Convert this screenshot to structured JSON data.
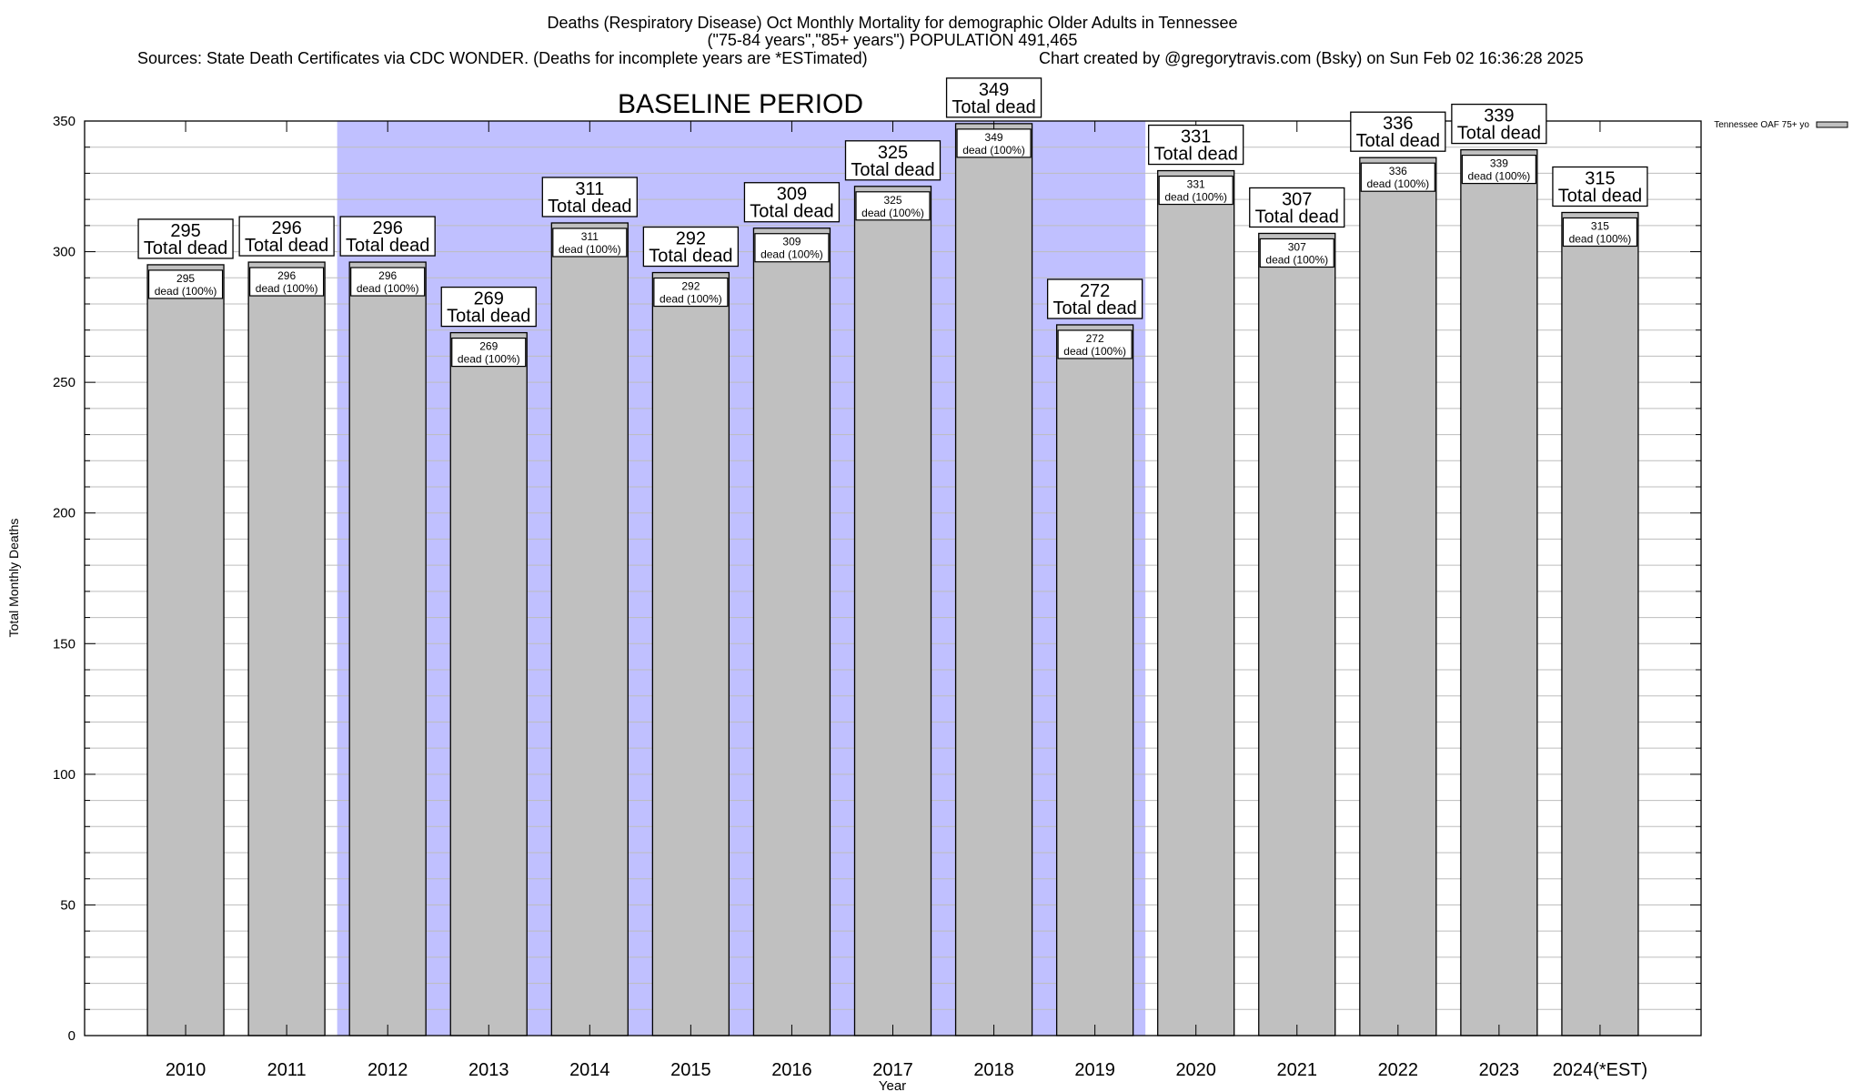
{
  "chart_data": {
    "type": "bar",
    "title_lines": [
      "Deaths (Respiratory Disease) Oct Monthly Mortality for demographic Older Adults in Tennessee",
      "(\"75-84 years\",\"85+ years\") POPULATION 491,465"
    ],
    "sources": "Sources: State Death Certificates via CDC WONDER. (Deaths for incomplete years are *ESTimated)",
    "credit": "Chart created by @gregorytravis.com (Bsky) on Sun Feb 02 16:36:28 2025",
    "xlabel": "Year",
    "ylabel": "Total Monthly Deaths",
    "ylim": [
      0,
      350
    ],
    "yticks": [
      0,
      50,
      100,
      150,
      200,
      250,
      300,
      350
    ],
    "grid": true,
    "minor_grid_step": 10,
    "categories": [
      "2010",
      "2011",
      "2012",
      "2013",
      "2014",
      "2015",
      "2016",
      "2017",
      "2018",
      "2019",
      "2020",
      "2021",
      "2022",
      "2023",
      "2024(*EST)"
    ],
    "series": [
      {
        "name": "Tennessee OAF 75+ yo",
        "color": "#c0c0c0",
        "values": [
          295,
          296,
          296,
          269,
          311,
          292,
          309,
          325,
          349,
          272,
          331,
          307,
          336,
          339,
          315
        ]
      }
    ],
    "total_label_suffix": "Total dead",
    "inner_label_suffix": "dead (100%)",
    "baseline": {
      "label": "BASELINE PERIOD",
      "from": "2012",
      "to": "2019",
      "color": "#c0c0ff"
    },
    "legend_position": "top-right"
  }
}
